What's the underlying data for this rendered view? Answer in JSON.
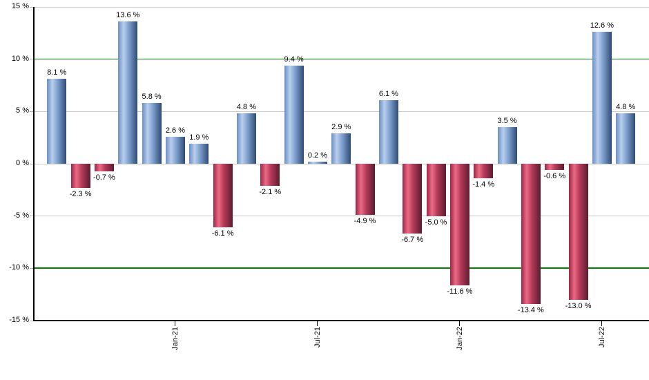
{
  "chart_data": {
    "type": "bar",
    "title": "",
    "xlabel": "",
    "ylabel": "",
    "ylim": [
      -15,
      15
    ],
    "grid": true,
    "legend": null,
    "values": [
      8.1,
      -2.3,
      -0.7,
      13.6,
      5.8,
      2.6,
      1.9,
      -6.1,
      4.8,
      -2.1,
      9.4,
      0.2,
      2.9,
      -4.9,
      6.1,
      -6.7,
      -5.0,
      -11.6,
      -1.4,
      3.5,
      -13.4,
      -0.6,
      -13.0,
      12.6,
      4.8
    ],
    "point_labels": [
      "8.1 %",
      "-2.3 %",
      "-0.7 %",
      "13.6 %",
      "5.8 %",
      "2.6 %",
      "1.9 %",
      "-6.1 %",
      "4.8 %",
      "-2.1 %",
      "9.4 %",
      "0.2 %",
      "2.9 %",
      "-4.9 %",
      "6.1 %",
      "-6.7 %",
      "-5.0 %",
      "-11.6 %",
      "-1.4 %",
      "3.5 %",
      "-13.4 %",
      "-0.6 %",
      "-13.0 %",
      "12.6 %",
      "4.8 %"
    ],
    "x_tick_labels": [
      {
        "label": "Jan-21",
        "bar_index": 5
      },
      {
        "label": "Jul-21",
        "bar_index": 11
      },
      {
        "label": "Jan-22",
        "bar_index": 17
      },
      {
        "label": "Jul-22",
        "bar_index": 23
      }
    ],
    "y_ticks": [
      {
        "label": "15 %",
        "value": 15
      },
      {
        "label": "10 %",
        "value": 10
      },
      {
        "label": "5 %",
        "value": 5
      },
      {
        "label": "0 %",
        "value": 0
      },
      {
        "label": "-5 %",
        "value": -5
      },
      {
        "label": "-10 %",
        "value": -10
      },
      {
        "label": "-15 %",
        "value": -15
      }
    ],
    "grid_values": [
      15,
      5,
      0,
      -5
    ],
    "hlines": [
      {
        "value": 10,
        "color": "#008000"
      },
      {
        "value": -10,
        "color": "#008000"
      }
    ],
    "colors": {
      "positive_gradient": [
        "#6a8ec6",
        "#b9cfec",
        "#7fa1cf",
        "#2f4b74"
      ],
      "negative_gradient": [
        "#9e2544",
        "#eb6b85",
        "#b43a59",
        "#5c1c2f"
      ],
      "grid": "#c9c9c9",
      "axis": "#000000",
      "reference_line": "#008000",
      "label_text": "#000000",
      "background": "#ffffff"
    }
  }
}
